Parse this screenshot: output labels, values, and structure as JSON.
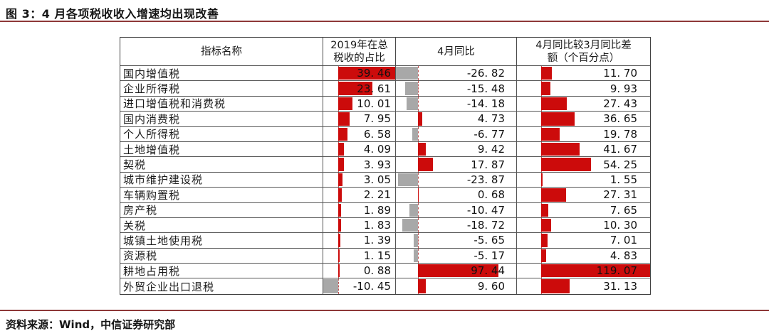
{
  "figure": {
    "title": "图 3：4 月各项税收收入增速均出现改善",
    "source": "资料来源：Wind，中信证券研究部"
  },
  "chart_data": {
    "type": "table",
    "title": "图 3：4 月各项税收收入增速均出现改善",
    "source": "资料来源：Wind，中信证券研究部",
    "columns": [
      {
        "key": "name",
        "label": "指标名称"
      },
      {
        "key": "share",
        "label": "2019年在总\n税收的占比",
        "bar_axis": {
          "min": -10.45,
          "max": 39.46
        }
      },
      {
        "key": "yoy",
        "label": "4月同比",
        "bar_axis": {
          "min": -26.82,
          "max": 119.07
        }
      },
      {
        "key": "diff",
        "label": "4月同比较3月同比差\n额（个百分点）",
        "bar_axis": {
          "min": -26.82,
          "max": 119.07
        }
      }
    ],
    "rows": [
      {
        "name": "国内增值税",
        "share": 39.46,
        "yoy": -26.82,
        "diff": 11.7
      },
      {
        "name": "企业所得税",
        "share": 23.61,
        "yoy": -15.48,
        "diff": 9.93
      },
      {
        "name": "进口增值税和消费税",
        "share": 10.01,
        "yoy": -14.18,
        "diff": 27.43
      },
      {
        "name": "国内消费税",
        "share": 7.95,
        "yoy": 4.73,
        "diff": 36.65
      },
      {
        "name": "个人所得税",
        "share": 6.58,
        "yoy": -6.77,
        "diff": 19.78
      },
      {
        "name": "土地增值税",
        "share": 4.09,
        "yoy": 9.42,
        "diff": 41.67
      },
      {
        "name": "契税",
        "share": 3.93,
        "yoy": 17.87,
        "diff": 54.25
      },
      {
        "name": "城市维护建设税",
        "share": 3.05,
        "yoy": -23.87,
        "diff": 1.55
      },
      {
        "name": "车辆购置税",
        "share": 2.21,
        "yoy": 0.68,
        "diff": 27.31
      },
      {
        "name": "房产税",
        "share": 1.89,
        "yoy": -10.47,
        "diff": 7.65
      },
      {
        "name": "关税",
        "share": 1.83,
        "yoy": -18.72,
        "diff": 10.3
      },
      {
        "name": "城镇土地使用税",
        "share": 1.39,
        "yoy": -5.65,
        "diff": 7.01
      },
      {
        "name": "资源税",
        "share": 1.15,
        "yoy": -5.17,
        "diff": 4.83
      },
      {
        "name": "耕地占用税",
        "share": 0.88,
        "yoy": 97.44,
        "diff": 119.07
      },
      {
        "name": "外贸企业出口退税",
        "share": -10.45,
        "yoy": 9.6,
        "diff": 31.13
      }
    ],
    "colors": {
      "positive_bar": "#cc0b0b",
      "negative_bar": "#a8a8a8",
      "axis_dash": "#bf5252",
      "rule_line": "#8e3838",
      "table_border": "#4a4a4a"
    }
  }
}
